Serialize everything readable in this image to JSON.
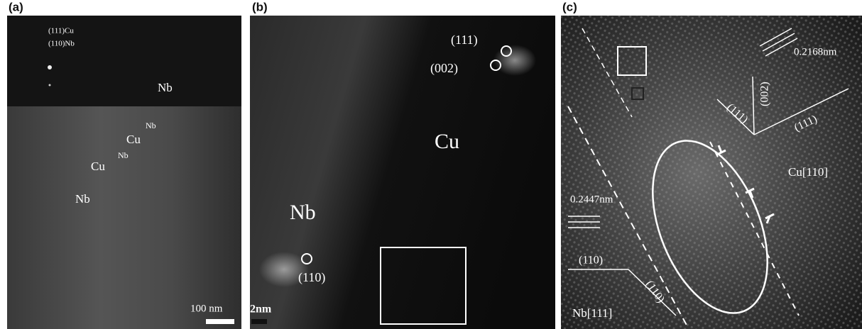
{
  "panels": [
    {
      "label": "(a)",
      "annotations": [
        {
          "text": "(111)Cu"
        },
        {
          "text": "(110)Nb"
        },
        {
          "text": "Nb"
        },
        {
          "text": "Nb"
        },
        {
          "text": "Cu"
        },
        {
          "text": "Nb"
        },
        {
          "text": "Cu"
        },
        {
          "text": "Nb"
        },
        {
          "text": "100 nm"
        }
      ]
    },
    {
      "label": "(b)",
      "annotations": [
        {
          "text": "(111)"
        },
        {
          "text": "(002)"
        },
        {
          "text": "Cu"
        },
        {
          "text": "Nb"
        },
        {
          "text": "(110)"
        },
        {
          "text": "2nm"
        }
      ]
    },
    {
      "label": "(c)",
      "annotations": [
        {
          "text": "0.2168nm"
        },
        {
          "text": "(111)"
        },
        {
          "text": "(002)"
        },
        {
          "text": "(111)"
        },
        {
          "text": "Cu[110]"
        },
        {
          "text": "0.2447nm"
        },
        {
          "text": "(110)"
        },
        {
          "text": "(110)"
        },
        {
          "text": "Nb[111]"
        }
      ]
    }
  ]
}
